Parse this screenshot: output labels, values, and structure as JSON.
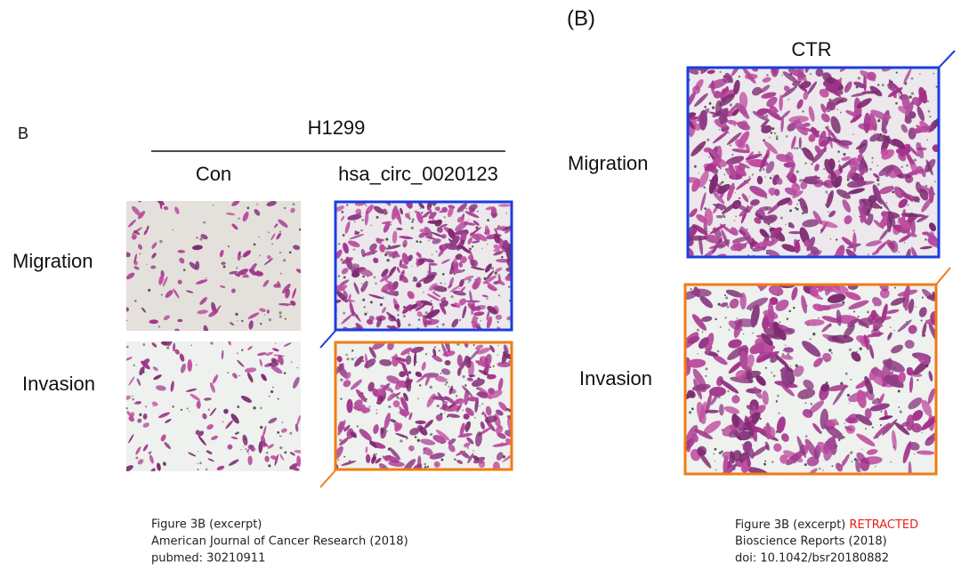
{
  "left_panel": {
    "label": "B",
    "cell_line": "H1299",
    "columns": [
      "Con",
      "hsa_circ_0020123"
    ],
    "rows": [
      "Migration",
      "Invasion"
    ],
    "caption": [
      "Figure 3B (excerpt)",
      "American Journal of Cancer Research (2018)",
      "pubmed: 30210911"
    ]
  },
  "right_panel": {
    "label": "(B)",
    "column": "CTR",
    "rows": [
      "Migration",
      "Invasion"
    ],
    "caption": {
      "line1": "Figure 3B (excerpt)",
      "status": "RETRACTED",
      "line2": "Bioscience Reports (2018)",
      "line3": "doi: 10.1042/bsr20180882"
    }
  }
}
